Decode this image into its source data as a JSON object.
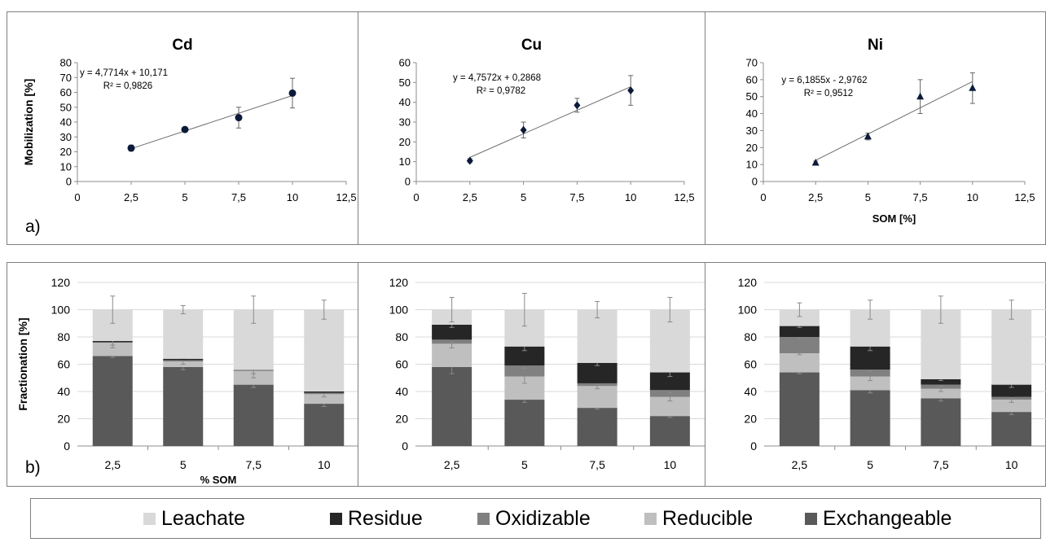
{
  "section_labels": {
    "a": "a)",
    "b": "b)"
  },
  "chart_data": [
    {
      "type": "scatter",
      "title": "Cd",
      "ylabel": "Mobilization [%]",
      "xlabel": "",
      "xlim": [
        0,
        12.5
      ],
      "ylim": [
        0,
        80
      ],
      "xticks": [
        "0",
        "2,5",
        "5",
        "7,5",
        "10",
        "12,5"
      ],
      "yticks": [
        "0",
        "10",
        "20",
        "30",
        "40",
        "50",
        "60",
        "70",
        "80"
      ],
      "marker": "circle",
      "points": [
        {
          "x": 2.5,
          "y": 22.5,
          "err": 2
        },
        {
          "x": 5,
          "y": 35,
          "err": 1.5
        },
        {
          "x": 7.5,
          "y": 43,
          "err": 7
        },
        {
          "x": 10,
          "y": 59.5,
          "err": 10
        }
      ],
      "trendline": {
        "slope": 4.7714,
        "intercept": 10.171,
        "equation": "y = 4,7714x + 10,171",
        "r2": "R² = 0,9826"
      }
    },
    {
      "type": "scatter",
      "title": "Cu",
      "ylabel": "",
      "xlabel": "",
      "xlim": [
        0,
        12.5
      ],
      "ylim": [
        0,
        60
      ],
      "xticks": [
        "0",
        "2,5",
        "5",
        "7,5",
        "10",
        "12,5"
      ],
      "yticks": [
        "0",
        "10",
        "20",
        "30",
        "40",
        "50",
        "60"
      ],
      "marker": "diamond",
      "points": [
        {
          "x": 2.5,
          "y": 10.5,
          "err": 1
        },
        {
          "x": 5,
          "y": 26,
          "err": 4
        },
        {
          "x": 7.5,
          "y": 38.5,
          "err": 3.5
        },
        {
          "x": 10,
          "y": 46,
          "err": 7.5
        }
      ],
      "trendline": {
        "slope": 4.7572,
        "intercept": 0.2868,
        "equation": "y = 4,7572x + 0,2868",
        "r2": "R² = 0,9782"
      }
    },
    {
      "type": "scatter",
      "title": "Ni",
      "ylabel": "",
      "xlabel": "SOM [%]",
      "xlim": [
        0,
        12.5
      ],
      "ylim": [
        0,
        70
      ],
      "xticks": [
        "0",
        "2,5",
        "5",
        "7,5",
        "10",
        "12,5"
      ],
      "yticks": [
        "0",
        "10",
        "20",
        "30",
        "40",
        "50",
        "60",
        "70"
      ],
      "marker": "triangle",
      "points": [
        {
          "x": 2.5,
          "y": 11,
          "err": 1
        },
        {
          "x": 5,
          "y": 26.5,
          "err": 2
        },
        {
          "x": 7.5,
          "y": 50,
          "err": 10
        },
        {
          "x": 10,
          "y": 55,
          "err": 9
        }
      ],
      "trendline": {
        "slope": 6.1855,
        "intercept": -2.9762,
        "equation": "y = 6,1855x - 2,9762",
        "r2": "R² = 0,9512"
      }
    },
    {
      "type": "bar",
      "stacked": true,
      "title": "",
      "ylabel": "Fractionation [%]",
      "xlabel": "% SOM",
      "ylim": [
        0,
        120
      ],
      "yticks": [
        "0",
        "20",
        "40",
        "60",
        "80",
        "100",
        "120"
      ],
      "categories": [
        "2,5",
        "5",
        "7,5",
        "10"
      ],
      "series": [
        {
          "name": "Exchangeable",
          "values": [
            66,
            58,
            45,
            31
          ],
          "err": [
            1,
            2,
            2,
            2
          ]
        },
        {
          "name": "Reducible",
          "values": [
            10,
            4,
            10,
            7
          ],
          "err": [
            2,
            2,
            2,
            2
          ]
        },
        {
          "name": "Oxidizable",
          "values": [
            0,
            1,
            1,
            1
          ],
          "err": [
            0,
            0,
            6,
            0
          ]
        },
        {
          "name": "Residue",
          "values": [
            1,
            1,
            0,
            1
          ],
          "err": [
            5,
            0,
            0,
            0
          ]
        },
        {
          "name": "Leachate",
          "values": [
            23,
            36,
            44,
            60
          ],
          "err": [
            10,
            3,
            10,
            7
          ]
        }
      ]
    },
    {
      "type": "bar",
      "stacked": true,
      "title": "",
      "ylabel": "",
      "xlabel": "",
      "ylim": [
        0,
        120
      ],
      "yticks": [
        "0",
        "20",
        "40",
        "60",
        "80",
        "100",
        "120"
      ],
      "categories": [
        "2,5",
        "5",
        "7,5",
        "10"
      ],
      "series": [
        {
          "name": "Exchangeable",
          "values": [
            58,
            34,
            28,
            22
          ],
          "err": [
            5,
            2,
            1,
            1
          ]
        },
        {
          "name": "Reducible",
          "values": [
            17,
            17,
            16,
            14
          ],
          "err": [
            3,
            5,
            2,
            3
          ]
        },
        {
          "name": "Oxidizable",
          "values": [
            3,
            8,
            2,
            5
          ],
          "err": [
            2,
            2,
            1,
            2
          ]
        },
        {
          "name": "Residue",
          "values": [
            11,
            14,
            15,
            13
          ],
          "err": [
            2,
            3,
            2,
            3
          ]
        },
        {
          "name": "Leachate",
          "values": [
            11,
            27,
            39,
            46
          ],
          "err": [
            9,
            12,
            6,
            9
          ]
        }
      ]
    },
    {
      "type": "bar",
      "stacked": true,
      "title": "",
      "ylabel": "",
      "xlabel": "",
      "ylim": [
        0,
        120
      ],
      "yticks": [
        "0",
        "20",
        "40",
        "60",
        "80",
        "100",
        "120"
      ],
      "categories": [
        "2,5",
        "5",
        "7,5",
        "10"
      ],
      "series": [
        {
          "name": "Exchangeable",
          "values": [
            54,
            41,
            35,
            25
          ],
          "err": [
            1,
            2,
            2,
            2
          ]
        },
        {
          "name": "Reducible",
          "values": [
            14,
            10,
            7,
            9
          ],
          "err": [
            1,
            3,
            2,
            2
          ]
        },
        {
          "name": "Oxidizable",
          "values": [
            12,
            5,
            3,
            2
          ],
          "err": [
            1,
            1,
            1,
            1
          ]
        },
        {
          "name": "Residue",
          "values": [
            8,
            17,
            4,
            9
          ],
          "err": [
            1,
            3,
            1,
            2
          ]
        },
        {
          "name": "Leachate",
          "values": [
            12,
            27,
            51,
            55
          ],
          "err": [
            5,
            7,
            10,
            7
          ]
        }
      ]
    }
  ],
  "legend": [
    {
      "name": "Leachate",
      "color": "#d9d9d9"
    },
    {
      "name": "Residue",
      "color": "#262626"
    },
    {
      "name": "Oxidizable",
      "color": "#808080"
    },
    {
      "name": "Reducible",
      "color": "#bfbfbf"
    },
    {
      "name": "Exchangeable",
      "color": "#595959"
    }
  ]
}
